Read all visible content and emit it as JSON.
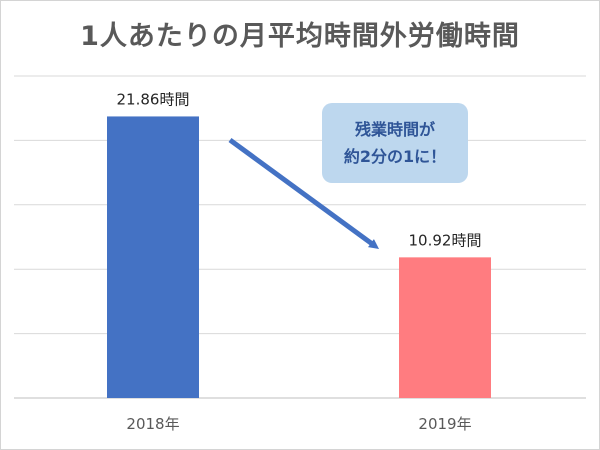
{
  "chart_data": {
    "type": "bar",
    "title": "1人あたりの月平均時間外労働時間",
    "categories": [
      "2018年",
      "2019年"
    ],
    "values": [
      21.86,
      10.92
    ],
    "data_labels": [
      "21.86時間",
      "10.92時間"
    ],
    "bar_colors": [
      "#4472c4",
      "#ff7c80"
    ],
    "ylim": [
      0,
      25
    ],
    "grid": true,
    "legend": "none",
    "annotation": {
      "lines": [
        "残業時間が",
        "約2分の1に！"
      ],
      "arrow_color": "#4472c4",
      "box_color": "#bdd7ee",
      "text_color": "#2f5597"
    }
  }
}
